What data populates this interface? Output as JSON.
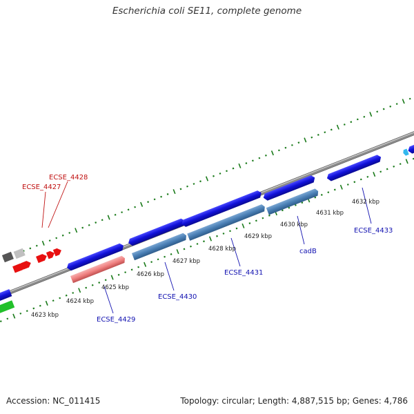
{
  "title": "Escherichia coli SE11, complete genome",
  "footer": {
    "accession": "Accession: NC_011415",
    "summary": "Topology: circular; Length: 4,887,515 bp; Genes: 4,786"
  },
  "kbp_labels": [
    "4623 kbp",
    "4624 kbp",
    "4625 kbp",
    "4626 kbp",
    "4627 kbp",
    "4628 kbp",
    "4629 kbp",
    "4630 kbp",
    "4631 kbp",
    "4632 kbp"
  ],
  "gene_labels": {
    "ECSE_4427": "ECSE_4427",
    "ECSE_4428": "ECSE_4428",
    "ECSE_4429": "ECSE_4429",
    "ECSE_4430": "ECSE_4430",
    "ECSE_4431": "ECSE_4431",
    "cadB": "cadB",
    "ECSE_4433": "ECSE_4433"
  },
  "colors": {
    "backbone": "#8a8a8a",
    "forward_gene": "#1010d8",
    "reverse_gene": "#4a7fb5",
    "pseudo_gene": "#f08080",
    "rna_gene": "#e81010",
    "tick": "#1a7a1a",
    "label_blue": "#1010b0",
    "label_red": "#c01010"
  }
}
